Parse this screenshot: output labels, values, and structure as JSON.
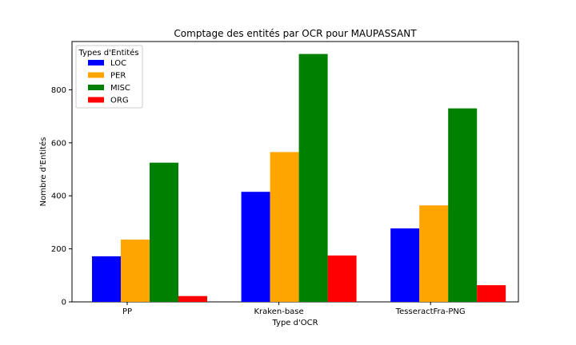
{
  "chart_data": {
    "type": "bar",
    "title": "Comptage des entités par OCR pour MAUPASSANT",
    "xlabel": "Type d'OCR",
    "ylabel": "Nombre d'Entités",
    "categories": [
      "PP",
      "Kraken-base",
      "TesseractFra-PNG"
    ],
    "series": [
      {
        "name": "LOC",
        "color": "#0000ff",
        "values": [
          172,
          415,
          277
        ]
      },
      {
        "name": "PER",
        "color": "#ffa500",
        "values": [
          235,
          565,
          364
        ]
      },
      {
        "name": "MISC",
        "color": "#008000",
        "values": [
          525,
          935,
          730
        ]
      },
      {
        "name": "ORG",
        "color": "#ff0000",
        "values": [
          22,
          175,
          63
        ]
      }
    ],
    "yticks": [
      0,
      200,
      400,
      600,
      800
    ],
    "ylim": [
      0,
      982
    ],
    "legend": {
      "title": "Types d'Entités",
      "position": "top-left"
    },
    "grid": false
  }
}
